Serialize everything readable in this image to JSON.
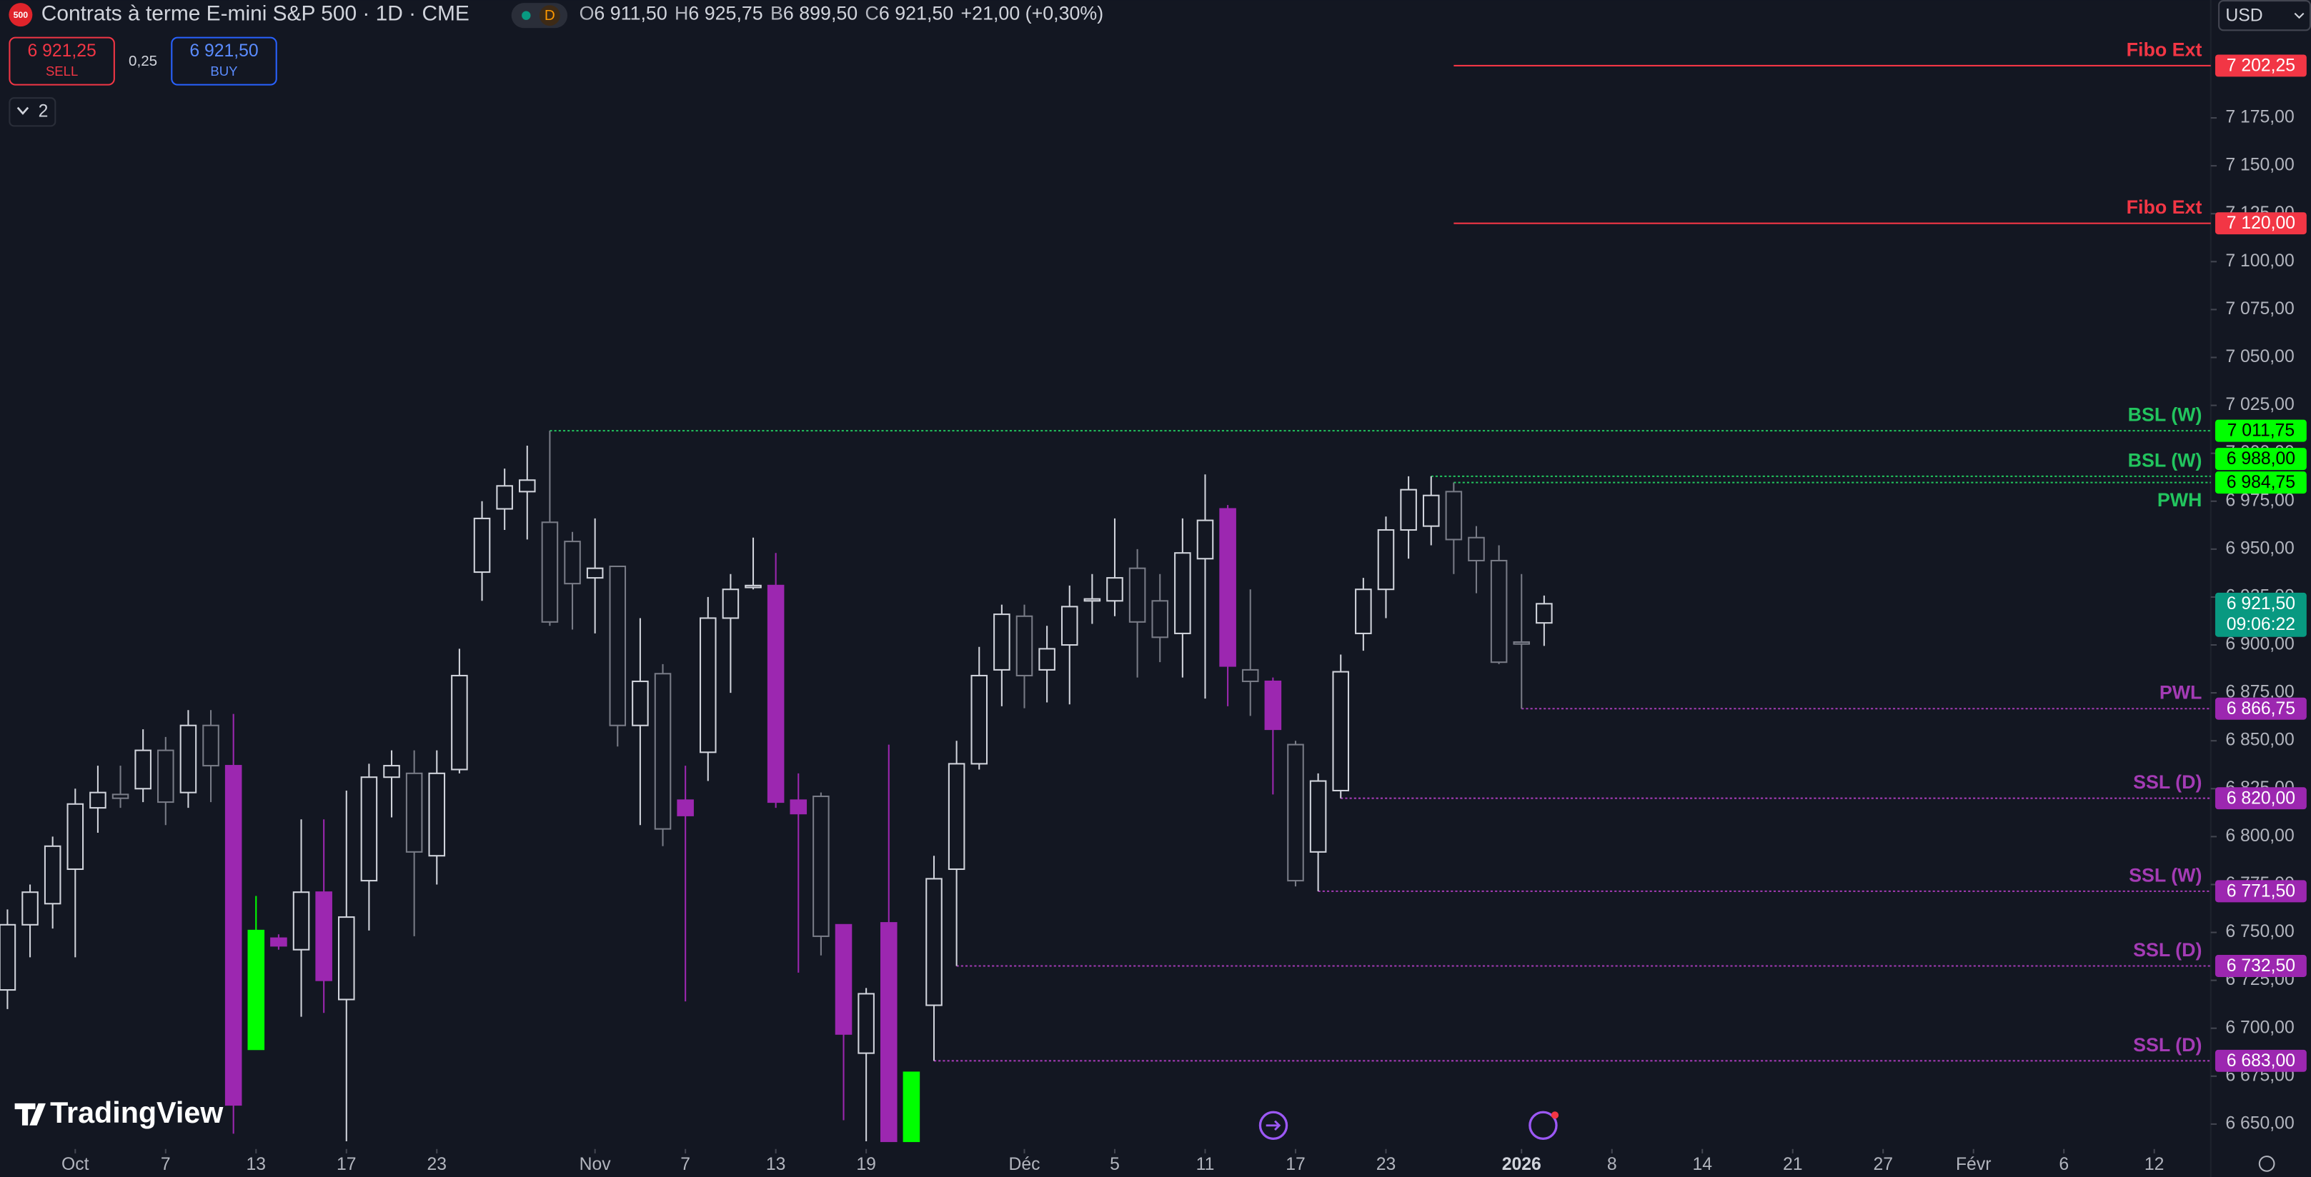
{
  "header": {
    "logo": "500",
    "title": "Contrats à terme E-mini S&P 500 · 1D · CME",
    "badge": "D",
    "ohlc": [
      {
        "key": "O",
        "value": "6 911,50"
      },
      {
        "key": "H",
        "value": "6 925,75"
      },
      {
        "key": "B",
        "value": "6 899,50"
      },
      {
        "key": "C",
        "value": "6 921,50"
      }
    ],
    "change": "+21,00 (+0,30%)",
    "sell_price": "6 921,25",
    "sell": "SELL",
    "spread": "0,25",
    "buy_price": "6 921,50",
    "buy": "BUY",
    "indicators": "2",
    "currency": "USD",
    "brand": "TradingView"
  },
  "chart_data": {
    "type": "candlestick",
    "open": [
      6720,
      6754,
      6765,
      6783,
      6815,
      6822,
      6825,
      6845,
      6823,
      6858,
      6837,
      6689,
      6747,
      6741,
      6771,
      6715,
      6777,
      6831,
      6833,
      6790,
      6835,
      6938,
      6971,
      6980,
      6964,
      6954,
      6935,
      6941,
      6858,
      6885,
      6819,
      6844,
      6914,
      6930,
      6931,
      6819,
      6821,
      6754,
      6687,
      6755,
      6641,
      6712,
      6783,
      6838,
      6887,
      6915,
      6887,
      6900,
      6923,
      6923,
      6940,
      6923,
      6906,
      6945,
      6971,
      6887,
      6881,
      6848,
      6792,
      6824,
      6906,
      6929,
      6960,
      6962,
      6980,
      6956,
      6944,
      6901.5,
      6911.5
    ],
    "high": [
      6762,
      6775,
      6800,
      6825,
      6837,
      6837,
      6856,
      6852,
      6866,
      6866,
      6864,
      6769,
      6749,
      6809,
      6809,
      6824,
      6838,
      6845,
      6845,
      6845,
      6898,
      6975,
      6992,
      7004,
      7011.75,
      6959,
      6966,
      6941,
      6914,
      6890,
      6837,
      6925,
      6937,
      6956,
      6948,
      6833,
      6823,
      6754,
      6721,
      6848,
      6677,
      6790,
      6850,
      6899,
      6921,
      6921,
      6910,
      6931,
      6937,
      6966,
      6950,
      6937,
      6966,
      6989,
      6973,
      6929,
      6883,
      6850,
      6833,
      6895,
      6935,
      6967,
      6988,
      6988,
      6984.75,
      6962,
      6952,
      6937,
      6925.75
    ],
    "low": [
      6710,
      6737,
      6752,
      6737,
      6802,
      6815,
      6818,
      6806,
      6815,
      6818,
      6645,
      6689,
      6741,
      6706,
      6708,
      6641,
      6751,
      6810,
      6748,
      6775,
      6833,
      6923,
      6960,
      6955,
      6910,
      6908,
      6906,
      6847,
      6806,
      6795,
      6714,
      6829,
      6875,
      6929,
      6815,
      6729,
      6738,
      6652,
      6641,
      6641,
      6641,
      6683,
      6732.5,
      6835,
      6868,
      6867,
      6870,
      6869,
      6911,
      6915,
      6883,
      6891,
      6883,
      6872,
      6868,
      6863,
      6822,
      6774,
      6771.5,
      6820,
      6897,
      6914,
      6945,
      6952,
      6937,
      6927,
      6890,
      6866.75,
      6899.5
    ],
    "close": [
      6754,
      6771,
      6795,
      6817,
      6823,
      6820,
      6845,
      6818,
      6858,
      6837,
      6660,
      6751,
      6743,
      6771,
      6725,
      6758,
      6831,
      6837,
      6792,
      6833,
      6884,
      6966,
      6983,
      6986,
      6912,
      6932,
      6940,
      6858,
      6881,
      6804,
      6811,
      6914,
      6929,
      6931,
      6818,
      6812,
      6748,
      6697,
      6718,
      6641,
      6677,
      6778,
      6838,
      6884,
      6916,
      6884,
      6898,
      6920,
      6924,
      6935,
      6912,
      6904,
      6948,
      6965,
      6889,
      6881,
      6856,
      6777,
      6829,
      6886,
      6929,
      6960,
      6981,
      6978,
      6955,
      6944,
      6891,
      6900.5,
      6921.5
    ],
    "highlight": [
      null,
      null,
      null,
      null,
      null,
      null,
      null,
      null,
      null,
      null,
      "#9c27b0",
      "#00ff00",
      "#9c27b0",
      null,
      "#9c27b0",
      null,
      null,
      null,
      null,
      null,
      null,
      null,
      null,
      null,
      null,
      null,
      null,
      null,
      null,
      null,
      "#9c27b0",
      null,
      null,
      null,
      "#9c27b0",
      "#9c27b0",
      null,
      "#9c27b0",
      null,
      "#9c27b0",
      "#00ff00",
      null,
      null,
      null,
      null,
      null,
      null,
      null,
      null,
      null,
      null,
      null,
      null,
      null,
      "#9c27b0",
      null,
      "#9c27b0",
      null,
      null,
      null,
      null,
      null,
      null,
      null,
      null,
      null,
      null,
      null,
      null
    ],
    "up_color": "#d1d4dc",
    "down_color": "#787b86",
    "xlim": [
      -0.33,
      97.5
    ],
    "xticks": [
      {
        "value": 3,
        "label": "Oct"
      },
      {
        "value": 7,
        "label": "7"
      },
      {
        "value": 11,
        "label": "13"
      },
      {
        "value": 15,
        "label": "17"
      },
      {
        "value": 19,
        "label": "23"
      },
      {
        "value": 26,
        "label": "Nov"
      },
      {
        "value": 30,
        "label": "7"
      },
      {
        "value": 34,
        "label": "13"
      },
      {
        "value": 38,
        "label": "19"
      },
      {
        "value": 45,
        "label": "Déc"
      },
      {
        "value": 49,
        "label": "5"
      },
      {
        "value": 53,
        "label": "11"
      },
      {
        "value": 57,
        "label": "17"
      },
      {
        "value": 61,
        "label": "23"
      },
      {
        "value": 67,
        "label": "2026",
        "bold": true
      },
      {
        "value": 71,
        "label": "8"
      },
      {
        "value": 75,
        "label": "14"
      },
      {
        "value": 79,
        "label": "21"
      },
      {
        "value": 83,
        "label": "27"
      },
      {
        "value": 87,
        "label": "Févr"
      },
      {
        "value": 91,
        "label": "6"
      },
      {
        "value": 95,
        "label": "12"
      }
    ],
    "ylim": [
      6637,
      7236.5
    ],
    "yticks": [
      {
        "value": 6650,
        "label": "6 650,00"
      },
      {
        "value": 6675,
        "label": "6 675,00"
      },
      {
        "value": 6700,
        "label": "6 700,00"
      },
      {
        "value": 6725,
        "label": "6 725,00"
      },
      {
        "value": 6750,
        "label": "6 750,00"
      },
      {
        "value": 6775,
        "label": "6 775,00"
      },
      {
        "value": 6800,
        "label": "6 800,00"
      },
      {
        "value": 6825,
        "label": "6 825,00"
      },
      {
        "value": 6850,
        "label": "6 850,00"
      },
      {
        "value": 6875,
        "label": "6 875,00"
      },
      {
        "value": 6900,
        "label": "6 900,00"
      },
      {
        "value": 6925,
        "label": "6 925,00"
      },
      {
        "value": 6950,
        "label": "6 950,00"
      },
      {
        "value": 6975,
        "label": "6 975,00"
      },
      {
        "value": 7000,
        "label": "7 000,00"
      },
      {
        "value": 7025,
        "label": "7 025,00"
      },
      {
        "value": 7050,
        "label": "7 050,00"
      },
      {
        "value": 7075,
        "label": "7 075,00"
      },
      {
        "value": 7100,
        "label": "7 100,00"
      },
      {
        "value": 7125,
        "label": "7 125,00"
      },
      {
        "value": 7150,
        "label": "7 150,00"
      },
      {
        "value": 7175,
        "label": "7 175,00"
      }
    ],
    "levels": [
      {
        "name": "Fibo Ext",
        "value": 7202.25,
        "value_label": "7 202,25",
        "color": "#f23645",
        "box_color": "#f23645",
        "box_text": "#ffffff",
        "style": "solid",
        "from": 64
      },
      {
        "name": "Fibo Ext",
        "value": 7120,
        "value_label": "7 120,00",
        "color": "#f23645",
        "box_color": "#f23645",
        "box_text": "#ffffff",
        "style": "solid",
        "from": 64
      },
      {
        "name": "BSL (W)",
        "value": 7011.75,
        "value_label": "7 011,75",
        "color": "#22c55e",
        "box_color": "#00ff00",
        "box_text": "#000000",
        "style": "dotted",
        "from": 24
      },
      {
        "name": "BSL (W)",
        "value": 6988,
        "value_label": "6 988,00",
        "color": "#22c55e",
        "box_color": "#00ff00",
        "box_text": "#000000",
        "style": "dotted",
        "from": 63
      },
      {
        "name": "PWH",
        "value": 6984.75,
        "value_label": "6 984,75",
        "color": "#22c55e",
        "box_color": "#00ff00",
        "box_text": "#000000",
        "style": "dotted",
        "from": 64
      },
      {
        "name": "PWL",
        "value": 6866.75,
        "value_label": "6 866,75",
        "color": "#a43bb5",
        "box_color": "#9c27b0",
        "box_text": "#ffffff",
        "style": "dotted",
        "from": 67
      },
      {
        "name": "SSL (D)",
        "value": 6820,
        "value_label": "6 820,00",
        "color": "#a43bb5",
        "box_color": "#9c27b0",
        "box_text": "#ffffff",
        "style": "dotted",
        "from": 59
      },
      {
        "name": "SSL (W)",
        "value": 6771.5,
        "value_label": "6 771,50",
        "color": "#a43bb5",
        "box_color": "#9c27b0",
        "box_text": "#ffffff",
        "style": "dotted",
        "from": 58
      },
      {
        "name": "SSL (D)",
        "value": 6732.5,
        "value_label": "6 732,50",
        "color": "#a43bb5",
        "box_color": "#9c27b0",
        "box_text": "#ffffff",
        "style": "dotted",
        "from": 42
      },
      {
        "name": "SSL (D)",
        "value": 6683,
        "value_label": "6 683,00",
        "color": "#a43bb5",
        "box_color": "#9c27b0",
        "box_text": "#ffffff",
        "style": "dotted",
        "from": 41
      }
    ],
    "last_price": {
      "value": 6921.5,
      "label": "6 921,50",
      "countdown": "09:06:22",
      "color": "#089981"
    }
  }
}
